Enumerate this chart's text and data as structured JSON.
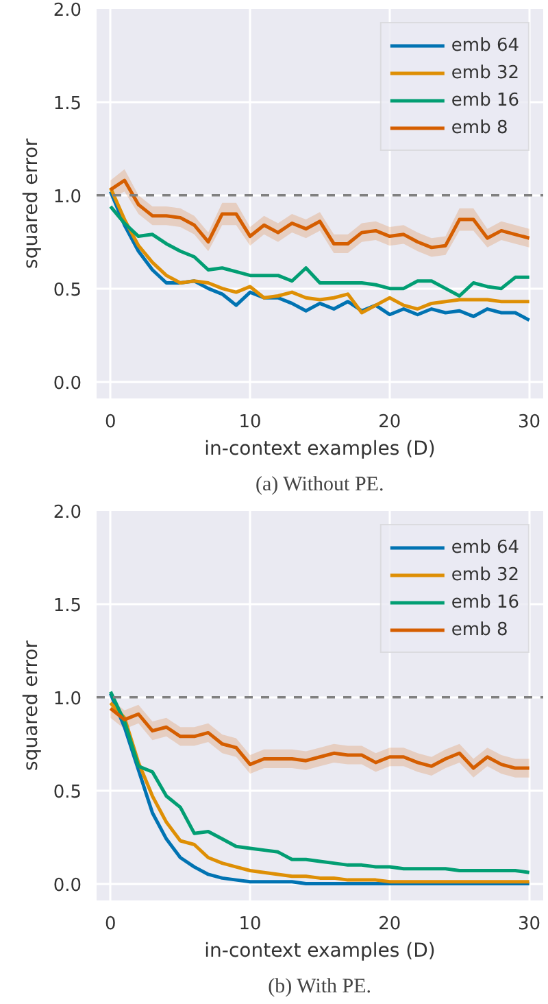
{
  "chart_data": [
    {
      "type": "line",
      "xlabel": "in-context examples (D)",
      "ylabel": "squared error",
      "annotations": [
        "(a) Without PE."
      ],
      "x": [
        0,
        1,
        2,
        3,
        4,
        5,
        6,
        7,
        8,
        9,
        10,
        11,
        12,
        13,
        14,
        15,
        16,
        17,
        18,
        19,
        20,
        21,
        22,
        23,
        24,
        25,
        26,
        27,
        28,
        29,
        30
      ],
      "xlim": [
        -1,
        31
      ],
      "ylim": [
        -0.09,
        2.0
      ],
      "xticks": [
        0,
        10,
        20,
        30
      ],
      "yticks": [
        {
          "value": 0,
          "label": "0.0"
        },
        {
          "value": 0.5,
          "label": "0.5"
        },
        {
          "value": 1,
          "label": "1.0"
        },
        {
          "value": 1.5,
          "label": "1.5"
        },
        {
          "value": 2,
          "label": "2.0"
        }
      ],
      "grid": true,
      "legend": "top right",
      "line_style": "solid",
      "ref_lines": [
        {
          "axis": "y",
          "value": 1,
          "color": "#808080",
          "line_style": "dashed"
        }
      ],
      "series": [
        {
          "name": "emb 64",
          "color": "#0173b2",
          "values": [
            1.02,
            0.84,
            0.7,
            0.6,
            0.53,
            0.53,
            0.54,
            0.5,
            0.47,
            0.41,
            0.48,
            0.45,
            0.45,
            0.42,
            0.38,
            0.42,
            0.39,
            0.43,
            0.38,
            0.41,
            0.36,
            0.39,
            0.36,
            0.39,
            0.37,
            0.38,
            0.35,
            0.39,
            0.37,
            0.37,
            0.33
          ]
        },
        {
          "name": "emb 32",
          "color": "#de8f05",
          "values": [
            1.04,
            0.87,
            0.73,
            0.64,
            0.57,
            0.53,
            0.54,
            0.53,
            0.5,
            0.48,
            0.51,
            0.45,
            0.46,
            0.48,
            0.45,
            0.44,
            0.45,
            0.47,
            0.37,
            0.41,
            0.45,
            0.41,
            0.39,
            0.42,
            0.43,
            0.44,
            0.44,
            0.44,
            0.43,
            0.43,
            0.43
          ]
        },
        {
          "name": "emb 16",
          "color": "#029e73",
          "values": [
            0.94,
            0.85,
            0.78,
            0.79,
            0.74,
            0.7,
            0.67,
            0.6,
            0.61,
            0.59,
            0.57,
            0.57,
            0.57,
            0.54,
            0.61,
            0.53,
            0.53,
            0.53,
            0.53,
            0.52,
            0.5,
            0.5,
            0.54,
            0.54,
            0.5,
            0.46,
            0.53,
            0.51,
            0.5,
            0.56,
            0.56
          ]
        },
        {
          "name": "emb 8",
          "color": "#d55e00",
          "values": [
            1.03,
            1.08,
            0.95,
            0.89,
            0.89,
            0.88,
            0.84,
            0.75,
            0.9,
            0.9,
            0.78,
            0.84,
            0.8,
            0.85,
            0.82,
            0.86,
            0.74,
            0.74,
            0.8,
            0.81,
            0.78,
            0.79,
            0.75,
            0.72,
            0.73,
            0.87,
            0.87,
            0.77,
            0.81,
            0.79,
            0.77
          ],
          "lower": [
            0.98,
            1.02,
            0.9,
            0.84,
            0.84,
            0.83,
            0.79,
            0.7,
            0.84,
            0.84,
            0.73,
            0.79,
            0.75,
            0.8,
            0.77,
            0.81,
            0.69,
            0.69,
            0.75,
            0.76,
            0.73,
            0.74,
            0.7,
            0.67,
            0.68,
            0.81,
            0.81,
            0.72,
            0.76,
            0.74,
            0.72
          ],
          "upper": [
            1.08,
            1.14,
            1.0,
            0.94,
            0.94,
            0.93,
            0.89,
            0.8,
            0.96,
            0.96,
            0.83,
            0.89,
            0.85,
            0.9,
            0.87,
            0.91,
            0.79,
            0.79,
            0.85,
            0.86,
            0.83,
            0.84,
            0.8,
            0.77,
            0.78,
            0.93,
            0.93,
            0.82,
            0.86,
            0.84,
            0.82
          ]
        }
      ]
    },
    {
      "type": "line",
      "xlabel": "in-context examples (D)",
      "ylabel": "squared error",
      "annotations": [
        "(b) With PE."
      ],
      "x": [
        0,
        1,
        2,
        3,
        4,
        5,
        6,
        7,
        8,
        9,
        10,
        11,
        12,
        13,
        14,
        15,
        16,
        17,
        18,
        19,
        20,
        21,
        22,
        23,
        24,
        25,
        26,
        27,
        28,
        29,
        30
      ],
      "xlim": [
        -1,
        31
      ],
      "ylim": [
        -0.09,
        2.0
      ],
      "xticks": [
        0,
        10,
        20,
        30
      ],
      "yticks": [
        {
          "value": 0,
          "label": "0.0"
        },
        {
          "value": 0.5,
          "label": "0.5"
        },
        {
          "value": 1,
          "label": "1.0"
        },
        {
          "value": 1.5,
          "label": "1.5"
        },
        {
          "value": 2,
          "label": "2.0"
        }
      ],
      "grid": true,
      "legend": "top right",
      "line_style": "solid",
      "ref_lines": [
        {
          "axis": "y",
          "value": 1,
          "color": "#808080",
          "line_style": "dashed"
        }
      ],
      "series": [
        {
          "name": "emb 64",
          "color": "#0173b2",
          "values": [
            1.02,
            0.84,
            0.61,
            0.38,
            0.24,
            0.14,
            0.09,
            0.05,
            0.03,
            0.02,
            0.01,
            0.01,
            0.01,
            0.01,
            0.0,
            0.0,
            0.0,
            0.0,
            0.0,
            0.0,
            0.0,
            0.0,
            0.0,
            0.0,
            0.0,
            0.0,
            0.0,
            0.0,
            0.0,
            0.0,
            0.0
          ]
        },
        {
          "name": "emb 32",
          "color": "#de8f05",
          "values": [
            0.97,
            0.89,
            0.65,
            0.47,
            0.33,
            0.23,
            0.21,
            0.14,
            0.11,
            0.09,
            0.07,
            0.06,
            0.05,
            0.04,
            0.04,
            0.03,
            0.03,
            0.02,
            0.02,
            0.02,
            0.01,
            0.01,
            0.01,
            0.01,
            0.01,
            0.01,
            0.01,
            0.01,
            0.01,
            0.01,
            0.01
          ]
        },
        {
          "name": "emb 16",
          "color": "#029e73",
          "values": [
            1.03,
            0.87,
            0.63,
            0.6,
            0.47,
            0.41,
            0.27,
            0.28,
            0.24,
            0.2,
            0.19,
            0.18,
            0.17,
            0.13,
            0.13,
            0.12,
            0.11,
            0.1,
            0.1,
            0.09,
            0.09,
            0.08,
            0.08,
            0.08,
            0.08,
            0.07,
            0.07,
            0.07,
            0.07,
            0.07,
            0.06
          ]
        },
        {
          "name": "emb 8",
          "color": "#d55e00",
          "values": [
            0.94,
            0.88,
            0.91,
            0.82,
            0.84,
            0.79,
            0.79,
            0.81,
            0.75,
            0.73,
            0.64,
            0.67,
            0.67,
            0.67,
            0.66,
            0.68,
            0.7,
            0.69,
            0.69,
            0.65,
            0.68,
            0.68,
            0.65,
            0.63,
            0.67,
            0.7,
            0.62,
            0.68,
            0.64,
            0.62,
            0.62
          ],
          "lower": [
            0.89,
            0.83,
            0.86,
            0.77,
            0.79,
            0.74,
            0.74,
            0.76,
            0.7,
            0.68,
            0.59,
            0.62,
            0.62,
            0.62,
            0.61,
            0.63,
            0.65,
            0.64,
            0.64,
            0.6,
            0.63,
            0.63,
            0.6,
            0.58,
            0.62,
            0.65,
            0.57,
            0.63,
            0.59,
            0.57,
            0.57
          ],
          "upper": [
            0.99,
            0.93,
            0.96,
            0.87,
            0.89,
            0.84,
            0.84,
            0.86,
            0.8,
            0.78,
            0.69,
            0.72,
            0.72,
            0.72,
            0.71,
            0.73,
            0.75,
            0.74,
            0.74,
            0.7,
            0.73,
            0.73,
            0.7,
            0.68,
            0.72,
            0.75,
            0.67,
            0.73,
            0.69,
            0.67,
            0.67
          ]
        }
      ]
    }
  ]
}
